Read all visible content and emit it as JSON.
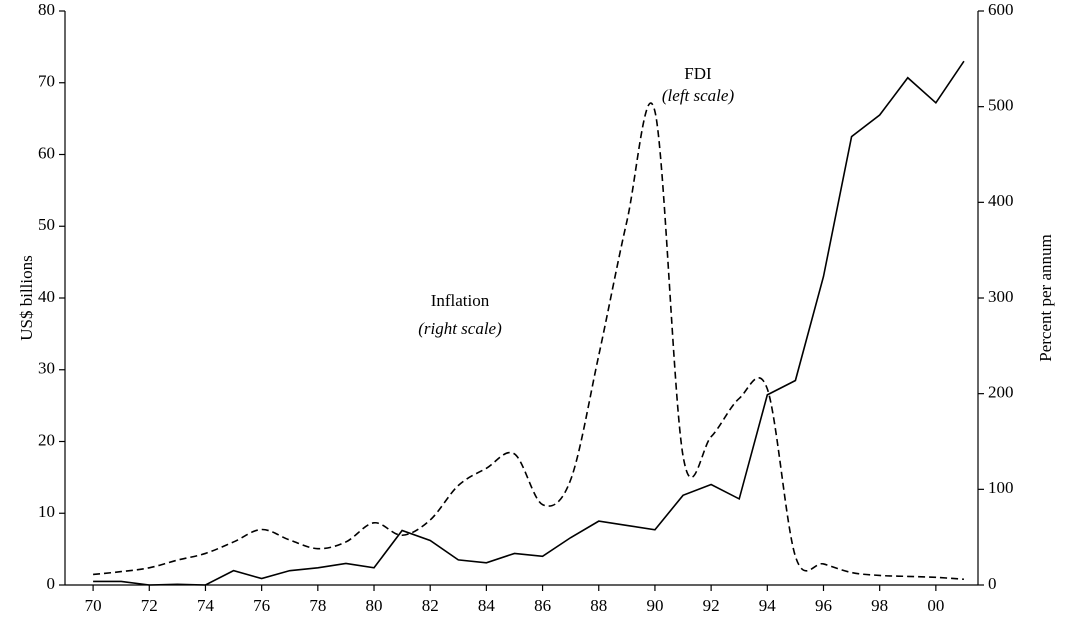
{
  "chart_data": {
    "type": "line",
    "y_label": "US$ billions",
    "y2_label": "Percent per annum",
    "annotations": [
      "FDI",
      "(left scale)",
      "Inflation",
      "(right scale)"
    ],
    "x": [
      1970,
      1971,
      1972,
      1973,
      1974,
      1975,
      1976,
      1977,
      1978,
      1979,
      1980,
      1981,
      1982,
      1983,
      1984,
      1985,
      1986,
      1987,
      1988,
      1989,
      1990,
      1991,
      1992,
      1993,
      1994,
      1995,
      1996,
      1997,
      1998,
      1999,
      2000,
      2001
    ],
    "series": [
      {
        "name": "FDI",
        "color": "#000000",
        "dash": "solid",
        "values": [
          0.5,
          0.5,
          0,
          0.1,
          0,
          2,
          0.9,
          2,
          2.4,
          3,
          2.4,
          7.6,
          6.2,
          3.5,
          3.1,
          4.4,
          4,
          6.6,
          8.9,
          8.3,
          7.7,
          12.5,
          14,
          12,
          26.5,
          28.5,
          43,
          62.5,
          65.5,
          70.7,
          67.2,
          73
        ]
      },
      {
        "name": "Inflation",
        "color": "#000000",
        "dash": "dashed",
        "axis": "y2",
        "values": [
          11,
          14,
          18,
          26,
          33,
          45,
          58,
          47,
          38,
          45,
          65,
          52,
          68,
          104,
          122,
          137,
          84,
          110,
          240,
          380,
          495,
          135,
          155,
          195,
          205,
          30,
          22,
          13,
          10,
          9,
          8,
          6
        ]
      }
    ],
    "xlim": [
      1969,
      2001.5
    ],
    "xticks": [
      {
        "value": 1970,
        "label": "70"
      },
      {
        "value": 1972,
        "label": "72"
      },
      {
        "value": 1974,
        "label": "74"
      },
      {
        "value": 1976,
        "label": "76"
      },
      {
        "value": 1978,
        "label": "78"
      },
      {
        "value": 1980,
        "label": "80"
      },
      {
        "value": 1982,
        "label": "82"
      },
      {
        "value": 1984,
        "label": "84"
      },
      {
        "value": 1986,
        "label": "86"
      },
      {
        "value": 1988,
        "label": "88"
      },
      {
        "value": 1990,
        "label": "90"
      },
      {
        "value": 1992,
        "label": "92"
      },
      {
        "value": 1994,
        "label": "94"
      },
      {
        "value": 1996,
        "label": "96"
      },
      {
        "value": 1998,
        "label": "98"
      },
      {
        "value": 2000,
        "label": "00"
      }
    ],
    "ylim": [
      0,
      80
    ],
    "yticks": [
      0,
      10,
      20,
      30,
      40,
      50,
      60,
      70,
      80
    ],
    "y2lim": [
      0,
      600
    ],
    "y2ticks": [
      0,
      100,
      200,
      300,
      400,
      500,
      600
    ]
  }
}
